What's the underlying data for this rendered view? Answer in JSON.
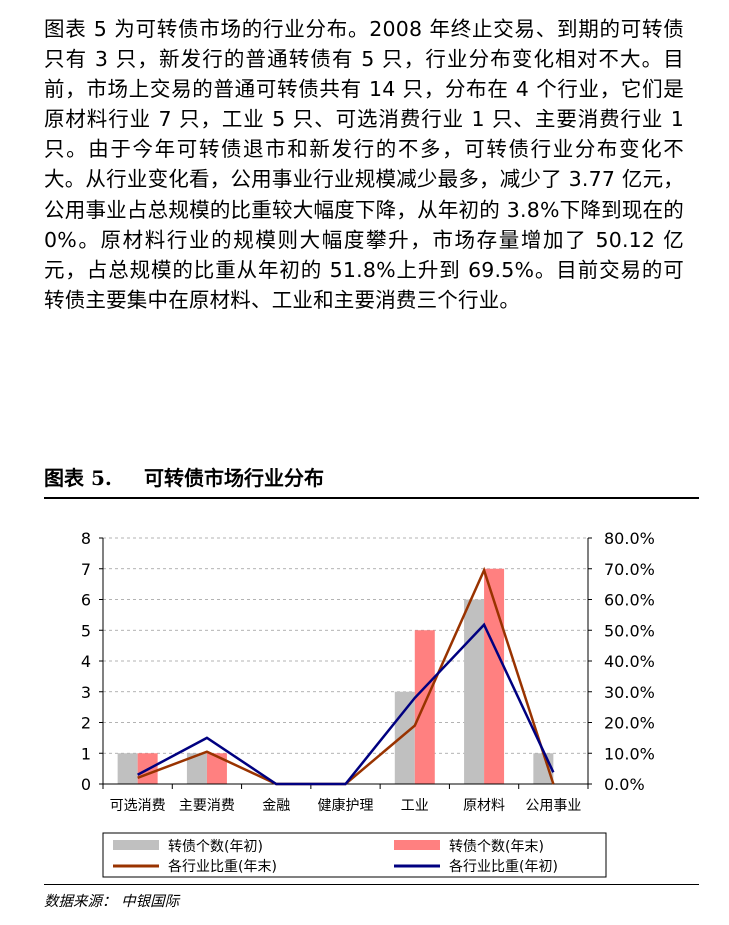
{
  "article": {
    "paragraph": "图表 5 为可转债市场的行业分布。2008 年终止交易、到期的可转债只有 3 只，新发行的普通转债有 5 只，行业分布变化相对不大。目前，市场上交易的普通可转债共有 14 只，分布在 4 个行业，它们是原材料行业 7 只，工业 5 只、可选消费行业 1 只、主要消费行业 1 只。由于今年可转债退市和新发行的不多，可转债行业分布变化不大。从行业变化看，公用事业行业规模减少最多，减少了 3.77 亿元，公用事业占总规模的比重较大幅度下降，从年初的 3.8%下降到现在的 0%。原材料行业的规模则大幅度攀升，市场存量增加了 50.12 亿元，占总规模的比重从年初的 51.8%上升到 69.5%。目前交易的可转债主要集中在原材料、工业和主要消费三个行业。"
  },
  "figure": {
    "label": "图表 5.",
    "title": "可转债市场行业分布",
    "source": "数据来源：  中银国际"
  },
  "chart_data": {
    "type": "bar",
    "categories": [
      "可选消费",
      "主要消费",
      "金融",
      "健康护理",
      "工业",
      "原材料",
      "公用事业"
    ],
    "left_axis": {
      "ylim": [
        0,
        8
      ],
      "ticks": [
        "0",
        "1",
        "2",
        "3",
        "4",
        "5",
        "6",
        "7",
        "8"
      ]
    },
    "right_axis": {
      "ylim": [
        0,
        0.8
      ],
      "ticks": [
        "0.0%",
        "10.0%",
        "20.0%",
        "30.0%",
        "40.0%",
        "50.0%",
        "60.0%",
        "70.0%",
        "80.0%"
      ]
    },
    "grid": true,
    "legend_position": "bottom",
    "series": [
      {
        "name": "转债个数(年初)",
        "kind": "bar",
        "axis": "left",
        "color": "#c0c0c0",
        "values": [
          1,
          1,
          0,
          0,
          3,
          6,
          1
        ]
      },
      {
        "name": "转债个数(年末)",
        "kind": "bar",
        "axis": "left",
        "color": "#ff8080",
        "values": [
          1,
          1,
          0,
          0,
          5,
          7,
          0
        ]
      },
      {
        "name": "各行业比重(年末)",
        "kind": "line",
        "axis": "right",
        "color": "#993300",
        "values": [
          0.02,
          0.105,
          0,
          0,
          0.19,
          0.695,
          0
        ]
      },
      {
        "name": "各行业比重(年初)",
        "kind": "line",
        "axis": "right",
        "color": "#000080",
        "values": [
          0.03,
          0.15,
          0,
          0,
          0.28,
          0.518,
          0.038
        ]
      }
    ]
  }
}
